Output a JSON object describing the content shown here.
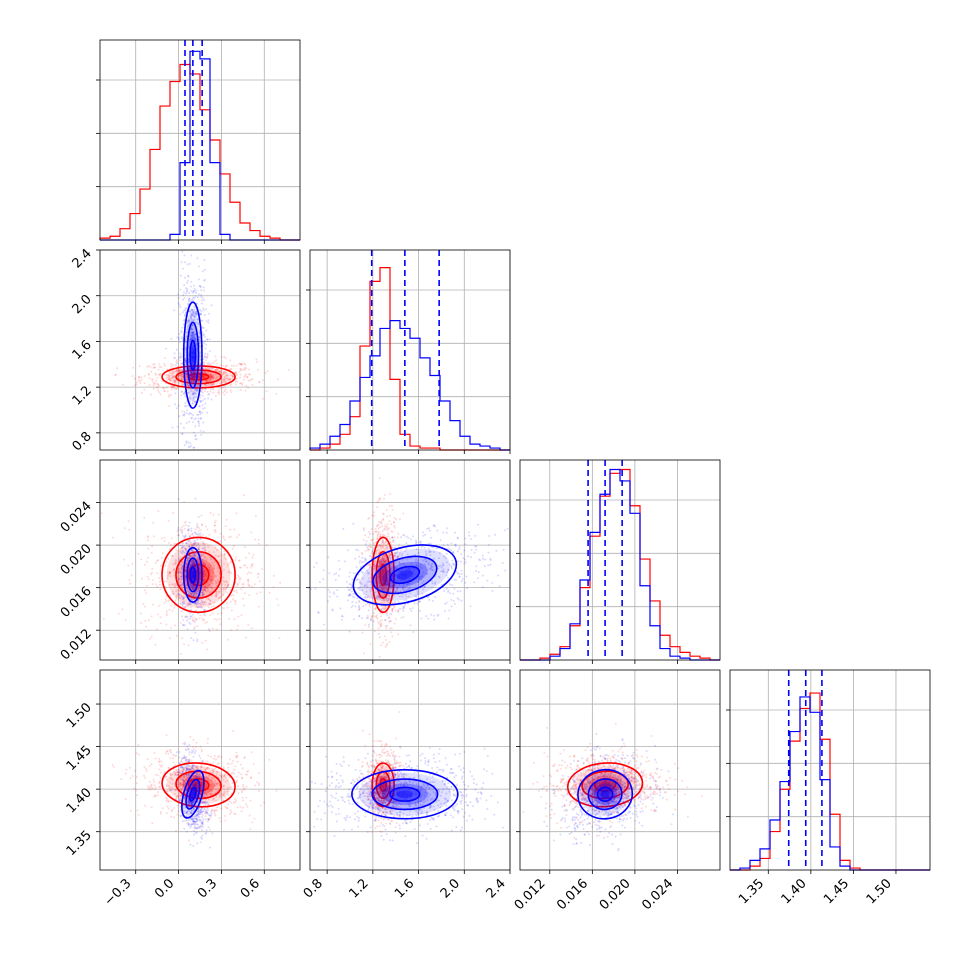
{
  "chart_data": {
    "type": "corner",
    "grid": true,
    "colors": {
      "blue": "#0000ff",
      "red": "#ff0000"
    },
    "params": [
      {
        "id": "p0",
        "range": [
          -0.55,
          0.85
        ],
        "ticks": [
          -0.3,
          0.0,
          0.3,
          0.6
        ],
        "tick_labels": [
          "−0.3",
          "0.0",
          "0.3",
          "0.6"
        ]
      },
      {
        "id": "p1",
        "range": [
          0.65,
          2.4
        ],
        "ticks": [
          0.8,
          1.2,
          1.6,
          2.0,
          2.4
        ],
        "tick_labels": [
          "0.8",
          "1.2",
          "1.6",
          "2.0",
          "2.4"
        ]
      },
      {
        "id": "p2",
        "range": [
          0.0092,
          0.028
        ],
        "ticks": [
          0.012,
          0.016,
          0.02,
          0.024
        ],
        "tick_labels": [
          "0.012",
          "0.016",
          "0.020",
          "0.024"
        ]
      },
      {
        "id": "p3",
        "range": [
          1.305,
          1.54
        ],
        "ticks": [
          1.35,
          1.4,
          1.45,
          1.5
        ],
        "tick_labels": [
          "1.35",
          "1.40",
          "1.45",
          "1.50"
        ]
      }
    ],
    "series": [
      {
        "color": "#0000ff",
        "mean": [
          0.1,
          1.48,
          0.0172,
          1.394
        ],
        "sd": [
          0.04,
          0.29,
          0.0016,
          0.018
        ],
        "quantiles": [
          [
            0.045,
            0.1,
            0.165
          ],
          [
            1.19,
            1.48,
            1.78
          ],
          [
            0.0156,
            0.0172,
            0.0188
          ],
          [
            1.374,
            1.394,
            1.413
          ]
        ],
        "hist": [
          [
            0,
            0,
            0,
            0,
            0,
            0,
            0,
            0.03,
            0.41,
            1.0,
            0.96,
            0.41,
            0.03,
            0,
            0,
            0,
            0,
            0,
            0,
            0
          ],
          [
            0.01,
            0.03,
            0.07,
            0.13,
            0.25,
            0.37,
            0.48,
            0.62,
            0.66,
            0.62,
            0.57,
            0.47,
            0.38,
            0.25,
            0.15,
            0.07,
            0.03,
            0.02,
            0.01,
            0
          ],
          [
            0,
            0,
            0,
            0.02,
            0.06,
            0.19,
            0.42,
            0.67,
            0.87,
            1.0,
            0.94,
            0.77,
            0.39,
            0.18,
            0.06,
            0.02,
            0.01,
            0,
            0,
            0
          ],
          [
            0,
            0.01,
            0.05,
            0.11,
            0.26,
            0.46,
            0.72,
            0.9,
            0.82,
            0.47,
            0.12,
            0.02,
            0,
            0,
            0,
            0,
            0,
            0,
            0,
            0
          ]
        ]
      },
      {
        "color": "#ff0000",
        "mean": [
          0.14,
          1.29,
          0.0172,
          1.405
        ],
        "sd": [
          0.16,
          0.06,
          0.0022,
          0.016
        ],
        "quantiles": [],
        "hist": [
          [
            0.01,
            0.02,
            0.06,
            0.14,
            0.27,
            0.48,
            0.71,
            0.84,
            0.93,
            0.88,
            0.69,
            0.53,
            0.35,
            0.2,
            0.09,
            0.05,
            0.02,
            0.01,
            0,
            0
          ],
          [
            0,
            0.01,
            0.03,
            0.08,
            0.17,
            0.53,
            0.86,
            0.93,
            0.36,
            0.08,
            0.02,
            0.01,
            0.01,
            0,
            0,
            0,
            0,
            0,
            0,
            0
          ],
          [
            0,
            0,
            0.01,
            0.03,
            0.07,
            0.18,
            0.38,
            0.65,
            0.86,
            0.98,
            1.0,
            0.81,
            0.53,
            0.31,
            0.13,
            0.07,
            0.04,
            0.02,
            0.01,
            0
          ],
          [
            0,
            0,
            0.02,
            0.06,
            0.2,
            0.42,
            0.67,
            0.84,
            0.92,
            0.68,
            0.29,
            0.05,
            0.01,
            0,
            0,
            0,
            0,
            0,
            0,
            0
          ]
        ]
      }
    ],
    "contour_levels": [
      0.39,
      0.86,
      1.39
    ],
    "hist_ymax": [
      1.06,
      1.02,
      1.05,
      1.04
    ]
  }
}
